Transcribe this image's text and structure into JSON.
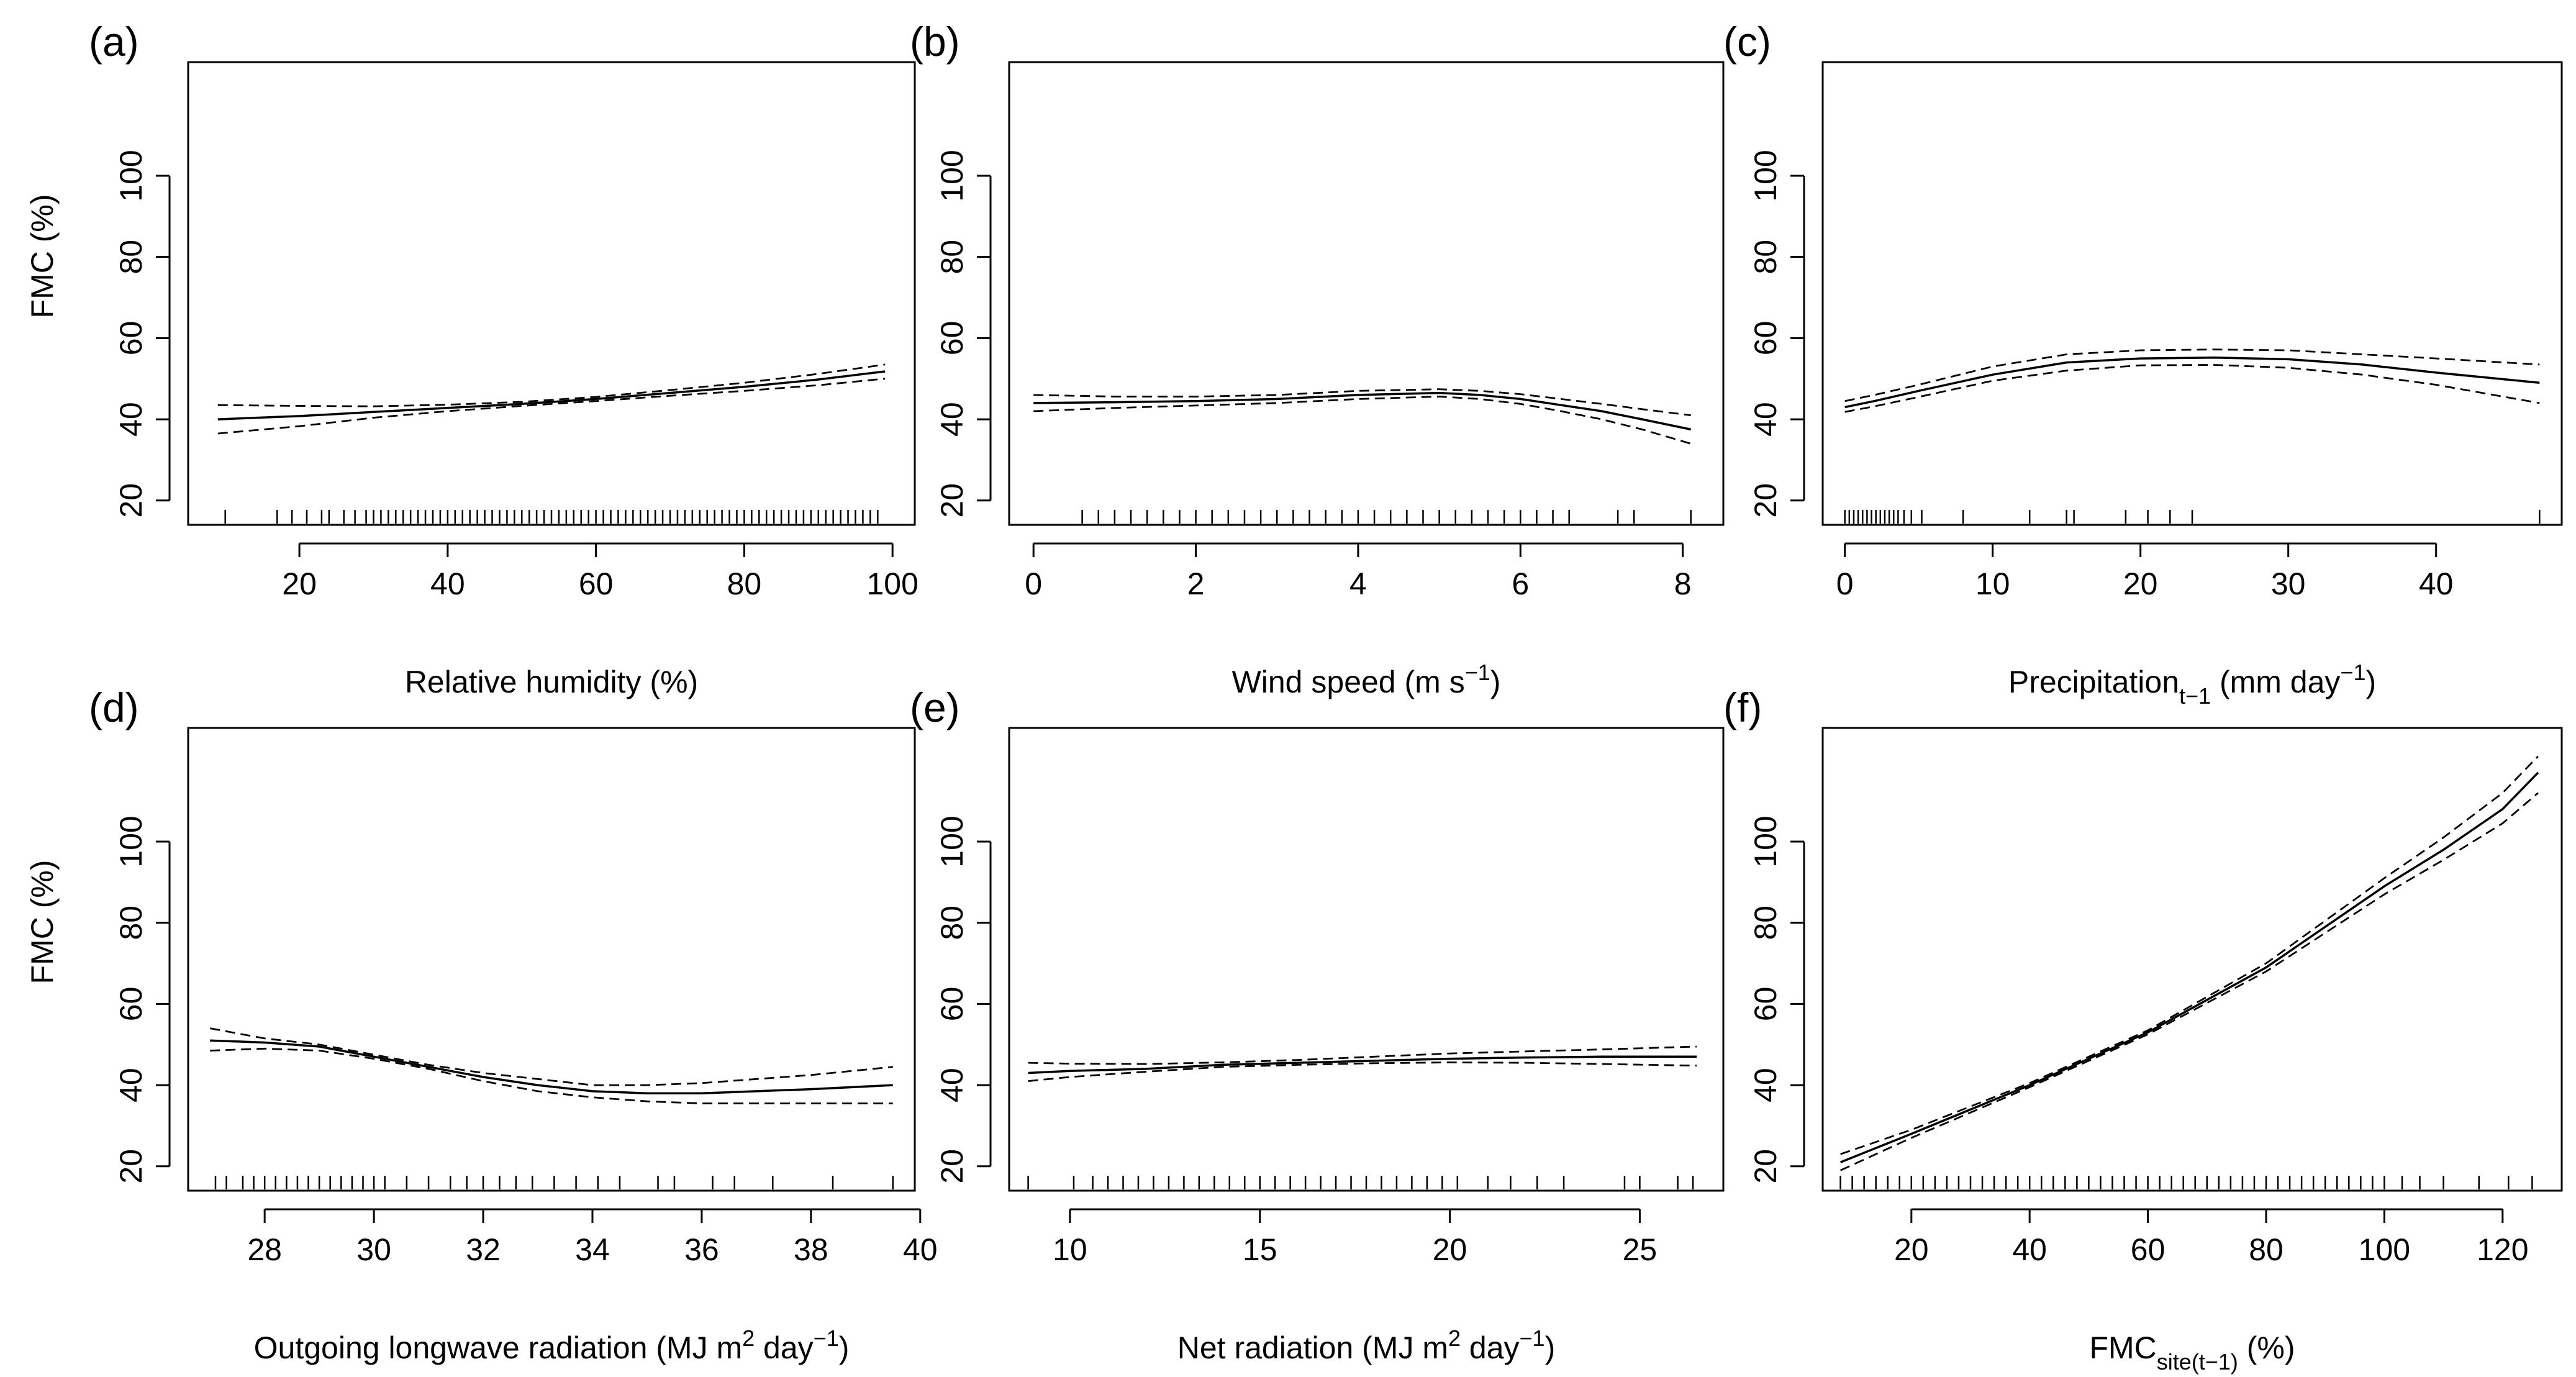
{
  "chart_data": [
    {
      "type": "line",
      "panel": "(a)",
      "xlabel": "Relative humidity (%)",
      "xlabel_parts": [
        {
          "t": "Relative humidity (%)"
        }
      ],
      "ylabel": "FMC (%)",
      "xlim": [
        5,
        103
      ],
      "ylim": [
        14,
        128
      ],
      "xticks": [
        20,
        40,
        60,
        80,
        100
      ],
      "yticks": [
        20,
        40,
        60,
        80,
        100
      ],
      "series": [
        {
          "name": "fit",
          "style": "solid",
          "x": [
            9,
            20,
            30,
            40,
            50,
            60,
            70,
            80,
            90,
            99
          ],
          "y": [
            40,
            40.8,
            41.8,
            42.8,
            43.8,
            45,
            46.5,
            48,
            49.8,
            51.8
          ]
        },
        {
          "name": "upper",
          "style": "dashed",
          "x": [
            9,
            20,
            30,
            40,
            50,
            60,
            70,
            80,
            90,
            99
          ],
          "y": [
            43.5,
            43.3,
            43.2,
            43.6,
            44.3,
            45.5,
            47.2,
            49,
            51.2,
            53.5
          ]
        },
        {
          "name": "lower",
          "style": "dashed",
          "x": [
            9,
            20,
            30,
            40,
            50,
            60,
            70,
            80,
            90,
            99
          ],
          "y": [
            36.5,
            38.3,
            40.4,
            42,
            43.3,
            44.5,
            45.8,
            47,
            48.4,
            50
          ]
        }
      ],
      "rug": [
        10,
        17,
        19,
        21,
        23,
        24,
        26,
        27.5,
        29,
        30,
        31,
        32,
        33,
        34,
        35,
        36,
        37,
        38,
        39,
        40,
        41,
        42,
        43,
        44,
        45,
        46,
        47,
        48,
        49,
        50,
        51,
        52,
        53,
        54,
        55,
        56,
        57,
        58,
        59,
        60,
        61,
        62,
        63,
        64,
        65,
        66,
        67,
        68,
        69,
        70,
        71,
        72,
        73,
        74,
        75,
        76,
        77,
        78,
        79,
        80,
        81,
        82,
        83,
        84,
        85,
        86,
        87,
        88,
        89,
        90,
        91,
        92,
        93,
        94,
        95,
        96,
        97,
        98
      ]
    },
    {
      "type": "line",
      "panel": "(b)",
      "xlabel": "Wind speed (m s^-1)",
      "xlabel_parts": [
        {
          "t": "Wind speed (m s"
        },
        {
          "t": "−1",
          "sup": true
        },
        {
          "t": ")"
        }
      ],
      "ylabel": "",
      "xlim": [
        -0.3,
        8.5
      ],
      "ylim": [
        14,
        128
      ],
      "xticks": [
        0,
        2,
        4,
        6,
        8
      ],
      "yticks": [
        20,
        40,
        60,
        80,
        100
      ],
      "series": [
        {
          "name": "fit",
          "style": "solid",
          "x": [
            0,
            1,
            2,
            3,
            4,
            5,
            5.5,
            6,
            6.5,
            7,
            7.5,
            8.1
          ],
          "y": [
            44,
            44.2,
            44.5,
            45,
            46,
            46.5,
            46,
            45,
            43.5,
            42,
            40,
            37.5
          ]
        },
        {
          "name": "upper",
          "style": "dashed",
          "x": [
            0,
            1,
            2,
            3,
            4,
            5,
            5.5,
            6,
            6.5,
            7,
            7.5,
            8.1
          ],
          "y": [
            46,
            45.6,
            45.6,
            46,
            47,
            47.4,
            47,
            46.2,
            45,
            43.8,
            42.5,
            41
          ]
        },
        {
          "name": "lower",
          "style": "dashed",
          "x": [
            0,
            1,
            2,
            3,
            4,
            5,
            5.5,
            6,
            6.5,
            7,
            7.5,
            8.1
          ],
          "y": [
            42,
            42.8,
            43.4,
            44,
            45,
            45.6,
            45,
            43.8,
            42,
            40,
            37.5,
            34
          ]
        }
      ],
      "rug": [
        0.6,
        0.8,
        1.0,
        1.2,
        1.4,
        1.6,
        1.8,
        2.0,
        2.2,
        2.4,
        2.6,
        2.8,
        3.0,
        3.2,
        3.4,
        3.6,
        3.8,
        4.0,
        4.2,
        4.4,
        4.6,
        4.8,
        5.0,
        5.2,
        5.4,
        5.6,
        5.8,
        6.0,
        6.2,
        6.4,
        6.6,
        7.2,
        7.4,
        8.1
      ]
    },
    {
      "type": "line",
      "panel": "(c)",
      "xlabel": "Precipitation_t−1 (mm day^-1)",
      "xlabel_parts": [
        {
          "t": "Precipitation"
        },
        {
          "t": "t−1",
          "sub": true
        },
        {
          "t": " (mm day"
        },
        {
          "t": "−1",
          "sup": true
        },
        {
          "t": ")"
        }
      ],
      "ylabel": "",
      "xlim": [
        -1.5,
        48.5
      ],
      "ylim": [
        14,
        128
      ],
      "xticks": [
        0,
        10,
        20,
        30,
        40
      ],
      "yticks": [
        20,
        40,
        60,
        80,
        100
      ],
      "series": [
        {
          "name": "fit",
          "style": "solid",
          "x": [
            0,
            2,
            5,
            10,
            15,
            20,
            25,
            30,
            35,
            40,
            47
          ],
          "y": [
            43,
            44.5,
            47,
            51,
            54,
            55,
            55.2,
            54.8,
            53.5,
            51.5,
            49
          ]
        },
        {
          "name": "upper",
          "style": "dashed",
          "x": [
            0,
            2,
            5,
            10,
            15,
            20,
            25,
            30,
            35,
            40,
            47
          ],
          "y": [
            44.5,
            46,
            48.5,
            53,
            56,
            57,
            57.2,
            57,
            56,
            55,
            53.5
          ]
        },
        {
          "name": "lower",
          "style": "dashed",
          "x": [
            0,
            2,
            5,
            10,
            15,
            20,
            25,
            30,
            35,
            40,
            47
          ],
          "y": [
            41.8,
            43.2,
            45.5,
            49.5,
            52,
            53.3,
            53.4,
            52.7,
            51,
            48.5,
            44
          ]
        }
      ],
      "rug": [
        0,
        0.3,
        0.6,
        0.9,
        1.2,
        1.5,
        1.8,
        2.1,
        2.4,
        2.7,
        3.0,
        3.3,
        3.6,
        4.0,
        4.5,
        5.2,
        8,
        12.5,
        15,
        15.5,
        19,
        20.5,
        22,
        23.5,
        47
      ]
    },
    {
      "type": "line",
      "panel": "(d)",
      "xlabel": "Outgoing longwave radiation (MJ m^2 day^-1)",
      "xlabel_parts": [
        {
          "t": "Outgoing longwave radiation (MJ m"
        },
        {
          "t": "2",
          "sup": true
        },
        {
          "t": " day"
        },
        {
          "t": "−1",
          "sup": true
        },
        {
          "t": ")"
        }
      ],
      "ylabel": "FMC (%)",
      "xlim": [
        26.6,
        39.9
      ],
      "ylim": [
        14,
        128
      ],
      "xticks": [
        28,
        30,
        32,
        34,
        36,
        38,
        40
      ],
      "yticks": [
        20,
        40,
        60,
        80,
        100
      ],
      "series": [
        {
          "name": "fit",
          "style": "solid",
          "x": [
            27,
            28,
            29,
            30,
            31,
            32,
            33,
            34,
            35,
            36,
            37,
            38,
            39.5
          ],
          "y": [
            51,
            50.5,
            49.5,
            47,
            44.5,
            42,
            40,
            38.5,
            38,
            38,
            38.5,
            39,
            40
          ]
        },
        {
          "name": "upper",
          "style": "dashed",
          "x": [
            27,
            28,
            29,
            30,
            31,
            32,
            33,
            34,
            35,
            36,
            37,
            38,
            39.5
          ],
          "y": [
            54,
            51.5,
            50,
            47.5,
            45,
            43,
            41.5,
            40,
            40,
            40.5,
            41.5,
            42.5,
            44.5
          ]
        },
        {
          "name": "lower",
          "style": "dashed",
          "x": [
            27,
            28,
            29,
            30,
            31,
            32,
            33,
            34,
            35,
            36,
            37,
            38,
            39.5
          ],
          "y": [
            48.5,
            49,
            48.5,
            46.5,
            44,
            41,
            38.5,
            37,
            36,
            35.5,
            35.5,
            35.5,
            35.5
          ]
        }
      ],
      "rug": [
        27.1,
        27.3,
        27.6,
        27.8,
        28.0,
        28.2,
        28.4,
        28.6,
        28.8,
        29.0,
        29.2,
        29.4,
        29.6,
        29.8,
        30.0,
        30.2,
        30.6,
        31.0,
        31.4,
        31.7,
        32.0,
        32.3,
        32.6,
        32.9,
        33.3,
        33.7,
        34.1,
        34.5,
        35.2,
        35.5,
        36.2,
        36.6,
        37.3,
        38.4,
        39.5
      ]
    },
    {
      "type": "line",
      "panel": "(e)",
      "xlabel": "Net radiation (MJ m^2 day^-1)",
      "xlabel_parts": [
        {
          "t": "Net radiation (MJ m"
        },
        {
          "t": "2",
          "sup": true
        },
        {
          "t": " day"
        },
        {
          "t": "−1",
          "sup": true
        },
        {
          "t": ")"
        }
      ],
      "ylabel": "",
      "xlim": [
        8.4,
        27.2
      ],
      "ylim": [
        14,
        128
      ],
      "xticks": [
        10,
        15,
        20,
        25
      ],
      "yticks": [
        20,
        40,
        60,
        80,
        100
      ],
      "series": [
        {
          "name": "fit",
          "style": "solid",
          "x": [
            8.9,
            10,
            12,
            14,
            16,
            18,
            20,
            22,
            24,
            26.5
          ],
          "y": [
            43,
            43.5,
            44,
            45,
            45.5,
            46,
            46.5,
            46.8,
            47,
            47
          ]
        },
        {
          "name": "upper",
          "style": "dashed",
          "x": [
            8.9,
            10,
            12,
            14,
            16,
            18,
            20,
            22,
            24,
            26.5
          ],
          "y": [
            45.5,
            45.3,
            45.2,
            45.6,
            46.2,
            47,
            47.8,
            48.3,
            48.8,
            49.5
          ]
        },
        {
          "name": "lower",
          "style": "dashed",
          "x": [
            8.9,
            10,
            12,
            14,
            16,
            18,
            20,
            22,
            24,
            26.5
          ],
          "y": [
            41,
            42,
            43.3,
            44.5,
            45,
            45.4,
            45.6,
            45.5,
            45.2,
            44.8
          ]
        }
      ],
      "rug": [
        8.9,
        10.1,
        10.6,
        11.0,
        11.4,
        11.8,
        12.2,
        12.6,
        13.0,
        13.4,
        13.8,
        14.2,
        14.6,
        15.0,
        15.4,
        15.8,
        16.2,
        16.6,
        17.0,
        17.4,
        17.8,
        18.2,
        18.6,
        19.0,
        19.4,
        19.8,
        20.2,
        21.0,
        21.6,
        22.3,
        23.0,
        24.6,
        25.0,
        26.0,
        26.4
      ]
    },
    {
      "type": "line",
      "panel": "(f)",
      "xlabel": "FMC_site(t−1) (%)",
      "xlabel_parts": [
        {
          "t": "FMC"
        },
        {
          "t": "site(t−1)",
          "sub": true
        },
        {
          "t": " (%)"
        }
      ],
      "ylabel": "",
      "xlim": [
        5,
        130
      ],
      "ylim": [
        14,
        128
      ],
      "xticks": [
        20,
        40,
        60,
        80,
        100,
        120
      ],
      "yticks": [
        20,
        40,
        60,
        80,
        100
      ],
      "series": [
        {
          "name": "fit",
          "style": "solid",
          "x": [
            8,
            20,
            40,
            60,
            80,
            100,
            110,
            120,
            126
          ],
          "y": [
            21,
            28,
            40,
            53,
            69,
            89,
            98,
            108,
            117
          ]
        },
        {
          "name": "upper",
          "style": "dashed",
          "x": [
            8,
            20,
            40,
            60,
            80,
            100,
            110,
            120,
            126
          ],
          "y": [
            23,
            29,
            40.5,
            53.5,
            70,
            91,
            101,
            112,
            121
          ]
        },
        {
          "name": "lower",
          "style": "dashed",
          "x": [
            8,
            20,
            40,
            60,
            80,
            100,
            110,
            120,
            126
          ],
          "y": [
            19,
            27,
            39.5,
            52.5,
            68,
            87,
            95.5,
            104.5,
            112
          ]
        }
      ],
      "rug": [
        8,
        10,
        12,
        14,
        16,
        18,
        20,
        22,
        24,
        26,
        28,
        30,
        32,
        34,
        36,
        38,
        40,
        42,
        44,
        46,
        48,
        50,
        52,
        54,
        56,
        58,
        60,
        62,
        64,
        66,
        68,
        70,
        72,
        74,
        76,
        78,
        80,
        82,
        84,
        86,
        88,
        90,
        92,
        94,
        96,
        98,
        100,
        103,
        106,
        110,
        116,
        121,
        125
      ]
    }
  ]
}
